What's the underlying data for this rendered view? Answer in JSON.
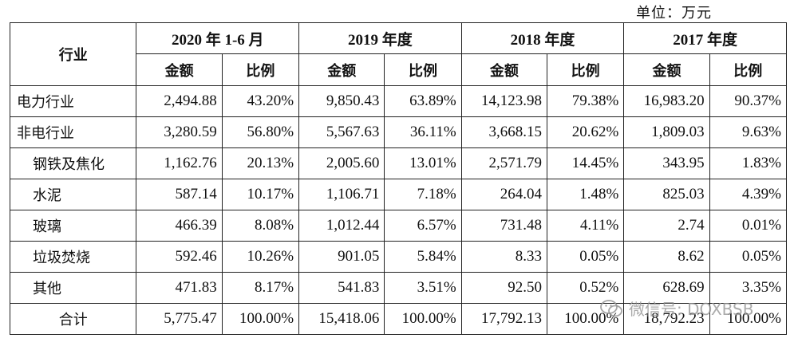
{
  "unit_label": "单位：万元",
  "header": {
    "industry": "行业",
    "periods": [
      "2020 年 1-6 月",
      "2019 年度",
      "2018 年度",
      "2017 年度"
    ],
    "amount": "金额",
    "ratio": "比例"
  },
  "rows": [
    {
      "name": "电力行业",
      "indent": false,
      "values": [
        "2,494.88",
        "43.20%",
        "9,850.43",
        "63.89%",
        "14,123.98",
        "79.38%",
        "16,983.20",
        "90.37%"
      ]
    },
    {
      "name": "非电行业",
      "indent": false,
      "values": [
        "3,280.59",
        "56.80%",
        "5,567.63",
        "36.11%",
        "3,668.15",
        "20.62%",
        "1,809.03",
        "9.63%"
      ]
    },
    {
      "name": "钢铁及焦化",
      "indent": true,
      "values": [
        "1,162.76",
        "20.13%",
        "2,005.60",
        "13.01%",
        "2,571.79",
        "14.45%",
        "343.95",
        "1.83%"
      ]
    },
    {
      "name": "水泥",
      "indent": true,
      "values": [
        "587.14",
        "10.17%",
        "1,106.71",
        "7.18%",
        "264.04",
        "1.48%",
        "825.03",
        "4.39%"
      ]
    },
    {
      "name": "玻璃",
      "indent": true,
      "values": [
        "466.39",
        "8.08%",
        "1,012.44",
        "6.57%",
        "731.48",
        "4.11%",
        "2.74",
        "0.01%"
      ]
    },
    {
      "name": "垃圾焚烧",
      "indent": true,
      "values": [
        "592.46",
        "10.26%",
        "901.05",
        "5.84%",
        "8.33",
        "0.05%",
        "8.62",
        "0.05%"
      ]
    },
    {
      "name": "其他",
      "indent": true,
      "values": [
        "471.83",
        "8.17%",
        "541.83",
        "3.51%",
        "92.50",
        "0.52%",
        "628.69",
        "3.35%"
      ]
    },
    {
      "name": "合计",
      "indent": false,
      "total": true,
      "values": [
        "5,775.47",
        "100.00%",
        "15,418.06",
        "100.00%",
        "17,792.13",
        "100.00%",
        "18,792.23",
        "100.00%"
      ]
    }
  ],
  "watermark": {
    "text": "微信号: DOXBSB",
    "icon": "wechat-icon"
  }
}
